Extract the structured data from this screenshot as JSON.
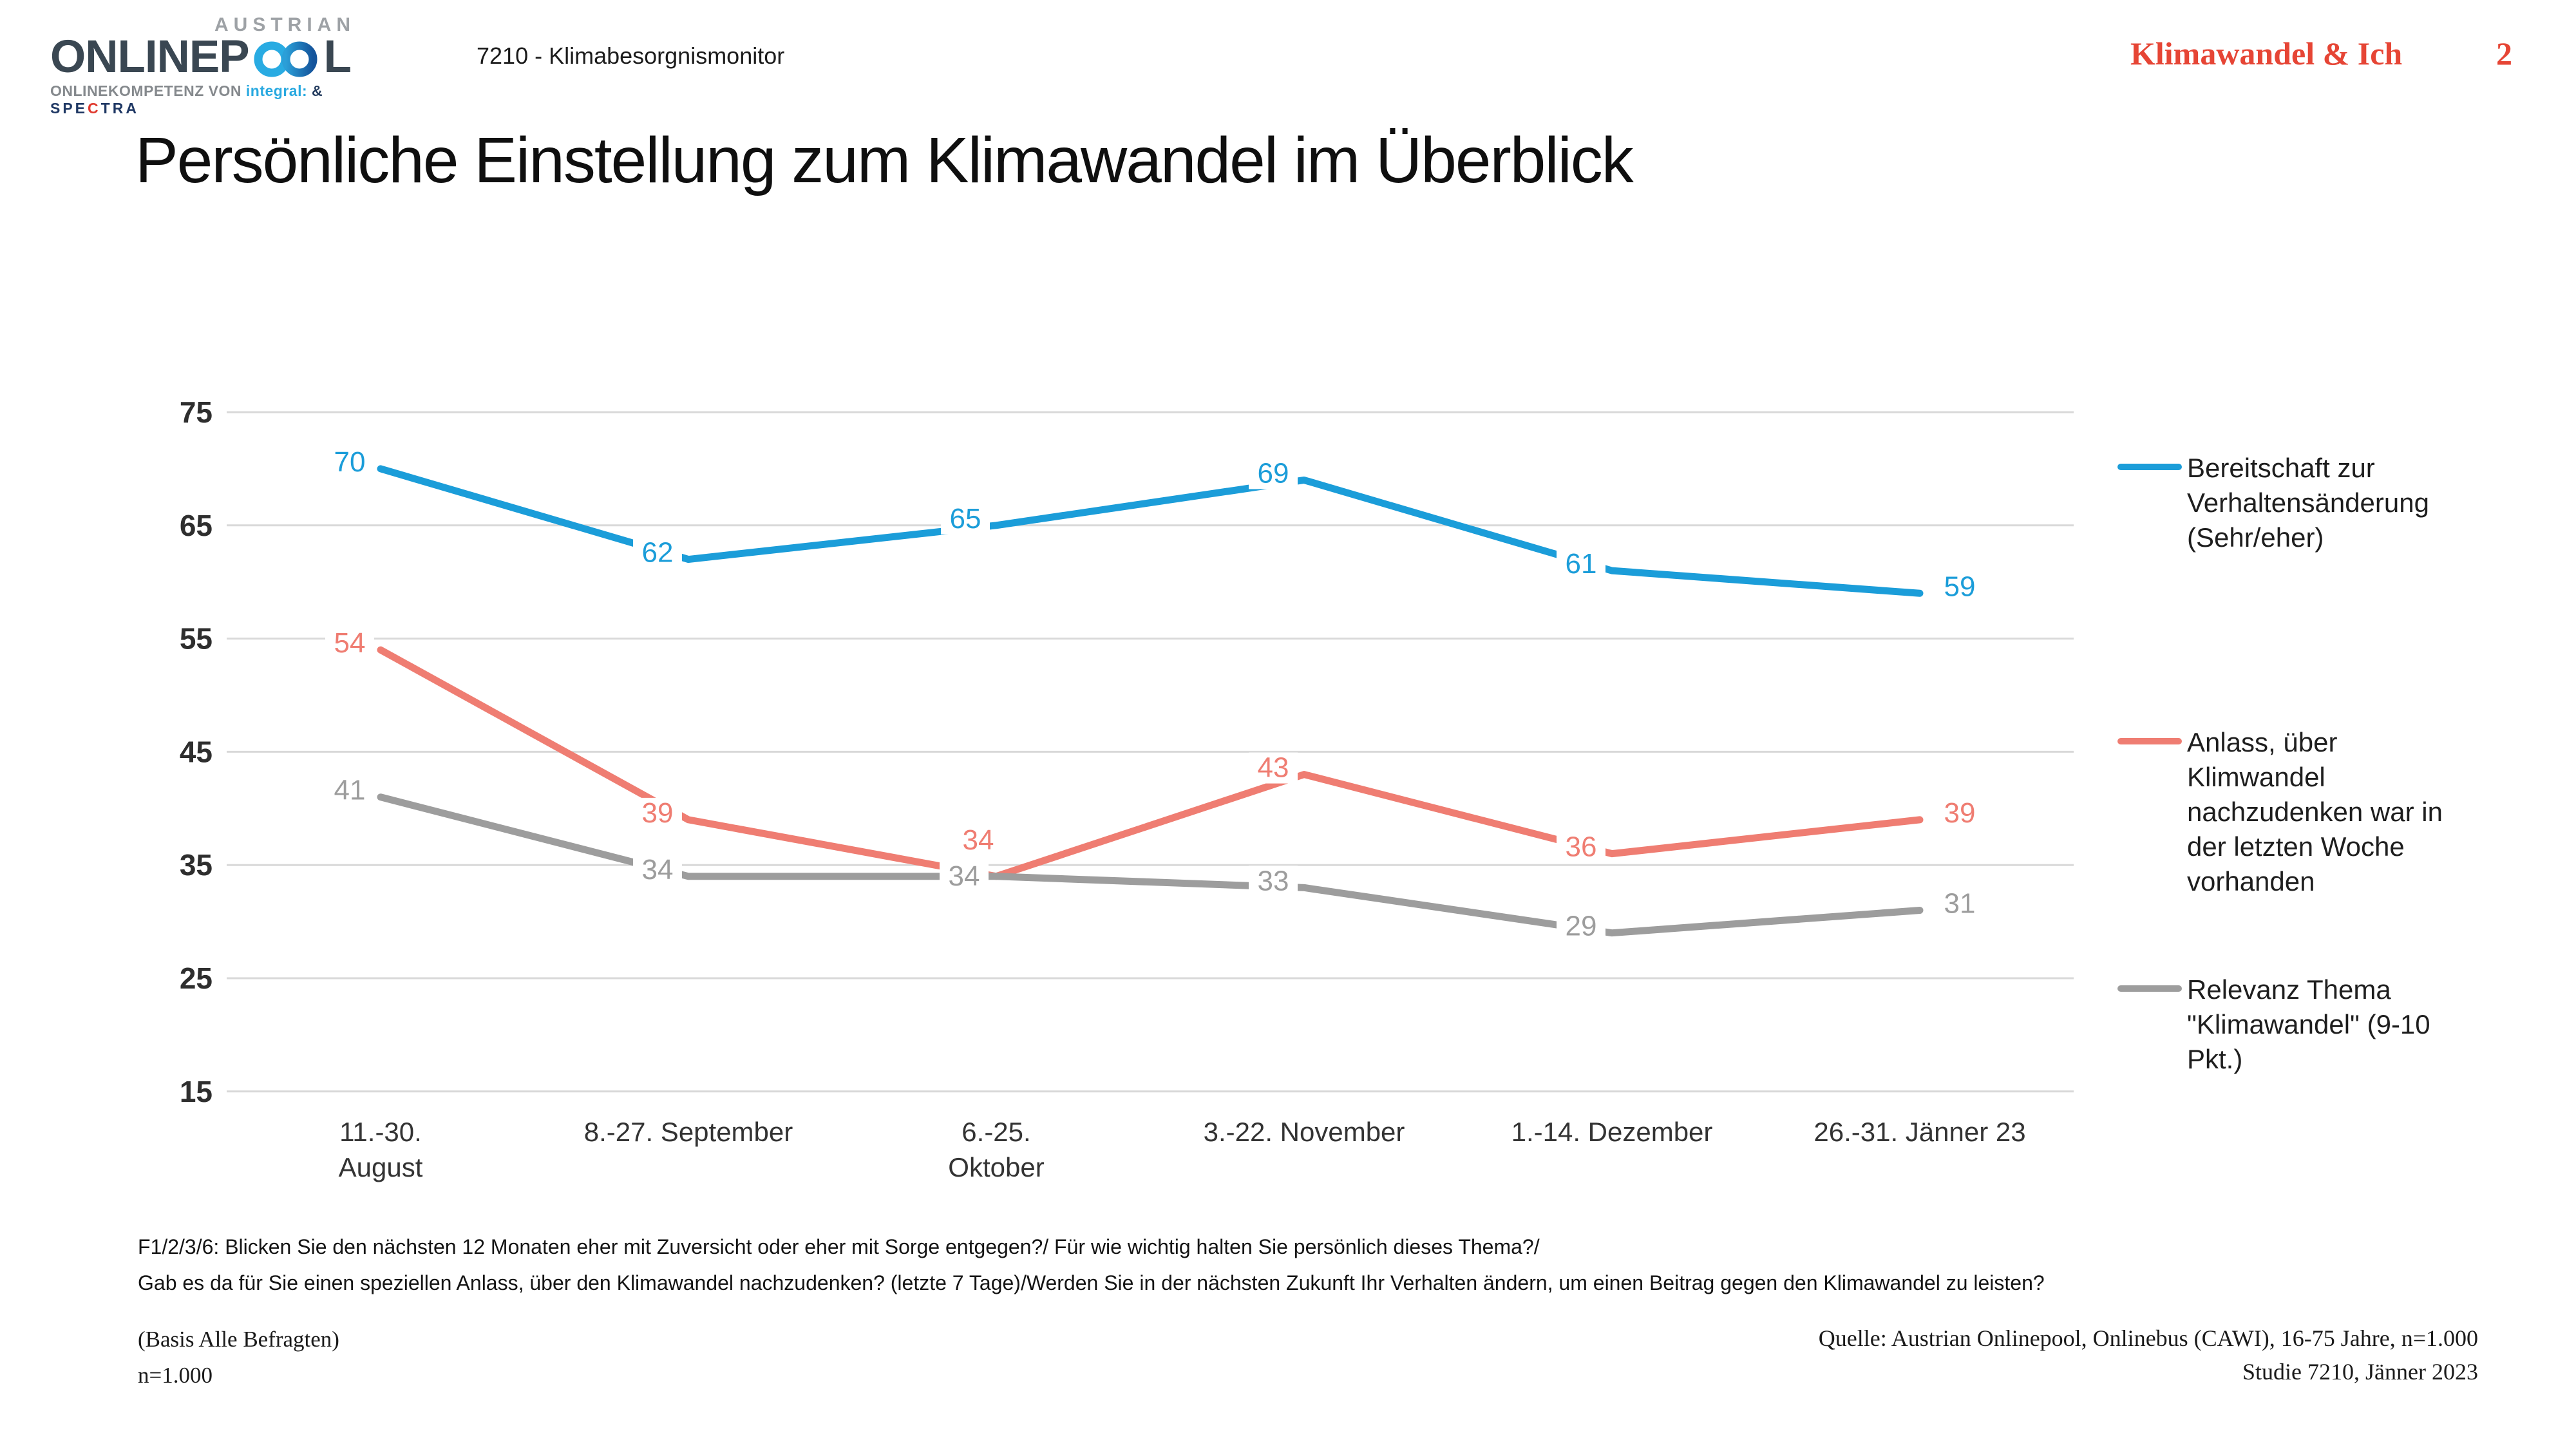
{
  "header": {
    "logo": {
      "austrian": "AUSTRIAN",
      "brand_pre": "ONLINEP",
      "brand_post": "L",
      "tagline_gray": "ONLINEKOMPETENZ VON ",
      "tagline_integral": "integral:",
      "tagline_amp": " & ",
      "spectra_pre": "SPE",
      "spectra_c": "C",
      "spectra_post": "TRA",
      "infinity_left_color": "#29ABE2",
      "infinity_right_color": "#1767AE"
    },
    "project": "7210 - Klimabesorgnismonitor",
    "doc_title": "Klimawandel & Ich",
    "page_number": "2"
  },
  "title": "Persönliche Einstellung zum Klimawandel im Überblick",
  "chart_data": {
    "type": "line",
    "title": "Persönliche Einstellung zum Klimawandel im Überblick",
    "categories": [
      "11.-30. August",
      "8.-27. September",
      "6.-25. Oktober",
      "3.-22. November",
      "1.-14. Dezember",
      "26.-31. Jänner 23"
    ],
    "categories_lines": [
      [
        "11.-30.",
        "August"
      ],
      [
        "8.-27. September"
      ],
      [
        "6.-25.",
        "Oktober"
      ],
      [
        "3.-22. November"
      ],
      [
        "1.-14. Dezember"
      ],
      [
        "26.-31. Jänner 23"
      ]
    ],
    "y_ticks": [
      75,
      65,
      55,
      45,
      35,
      25,
      15
    ],
    "ylim": [
      15,
      75
    ],
    "grid": true,
    "legend_position": "right",
    "grid_color": "#D9D9D9",
    "tick_color": "#2E2E2E",
    "axis_label_color": "#333333",
    "series": [
      {
        "name": "Bereitschaft zur Verhaltensänderung (Sehr/eher)",
        "legend_display": "Bereitschaft zur\nVerhaltensänderung\n(Sehr/eher)",
        "color": "#1B9DD9",
        "values": [
          70,
          62,
          65,
          69,
          61,
          59
        ],
        "label_offsets": [
          [
            -48,
            -12
          ],
          [
            -48,
            -12
          ],
          [
            -48,
            -12
          ],
          [
            -48,
            -12
          ],
          [
            -48,
            -12
          ],
          [
            62,
            -12
          ]
        ],
        "legend_top": 700
      },
      {
        "name": "Anlass, über Klimwandel nachzudenken war in der letzten Woche vorhanden",
        "legend_display": "Anlass, über\nKlimwandel\nnachzudenken war in\nder letzten Woche\nvorhanden",
        "color": "#EF7D72",
        "values": [
          54,
          39,
          34,
          43,
          36,
          39
        ],
        "label_offsets": [
          [
            -48,
            -12
          ],
          [
            -48,
            -12
          ],
          [
            -28,
            -58
          ],
          [
            -48,
            -12
          ],
          [
            -48,
            -12
          ],
          [
            62,
            -12
          ]
        ],
        "legend_top": 1126
      },
      {
        "name": "Relevanz Thema \"Klimawandel\" (9-10 Pkt.)",
        "legend_display": "Relevanz Thema\n\"Klimawandel\" (9-10\nPkt.)",
        "color": "#9D9D9D",
        "values": [
          41,
          34,
          34,
          33,
          29,
          31
        ],
        "label_offsets": [
          [
            -48,
            -12
          ],
          [
            -48,
            -12
          ],
          [
            -50,
            -2
          ],
          [
            -48,
            -12
          ],
          [
            -48,
            -12
          ],
          [
            62,
            -12
          ]
        ],
        "legend_top": 1510
      }
    ]
  },
  "footnotes": {
    "question": "F1/2/3/6: Blicken Sie den nächsten 12 Monaten eher mit Zuversicht oder eher mit Sorge entgegen?/ Für wie wichtig halten Sie persönlich dieses Thema?/\nGab es da für Sie einen speziellen Anlass, über den Klimawandel nachzudenken? (letzte 7 Tage)/Werden Sie in der nächsten Zukunft Ihr Verhalten ändern, um einen Beitrag gegen den Klimawandel zu leisten?",
    "basis": "(Basis Alle Befragten)",
    "sample": "n=1.000",
    "source_line1": "Quelle: Austrian Onlinepool, Onlinebus (CAWI), 16-75 Jahre, n=1.000",
    "source_line2": "Studie 7210, Jänner 2023"
  }
}
